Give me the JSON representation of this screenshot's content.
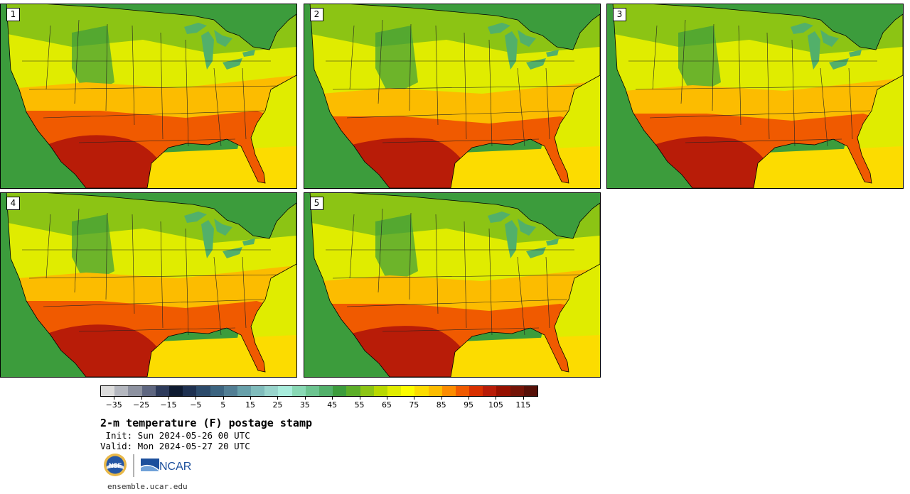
{
  "panels": [
    {
      "label": "1"
    },
    {
      "label": "2"
    },
    {
      "label": "3"
    },
    {
      "label": "4"
    },
    {
      "label": "5"
    }
  ],
  "colorbar": {
    "colors": [
      "#dcdcdc",
      "#b4b7bf",
      "#8d92a0",
      "#5e6680",
      "#2d3a5a",
      "#0e1a30",
      "#1e3050",
      "#2c4a6a",
      "#3c6480",
      "#527e94",
      "#68a0aa",
      "#80bcbc",
      "#98d4cc",
      "#a8ecdc",
      "#88d8b4",
      "#6cc490",
      "#52b06a",
      "#3c9c3c",
      "#5cae28",
      "#8cc414",
      "#b8d800",
      "#e0ec00",
      "#fcfc00",
      "#fcdc00",
      "#fcbc00",
      "#fc8c00",
      "#f05a00",
      "#d83000",
      "#b81c08",
      "#961000",
      "#741408",
      "#561008"
    ],
    "ticks": [
      "−35",
      "−25",
      "−15",
      "−5",
      "5",
      "15",
      "25",
      "35",
      "45",
      "55",
      "65",
      "75",
      "85",
      "95",
      "105",
      "115"
    ],
    "min": -40,
    "max": 120
  },
  "title": "2-m temperature (F) postage stamp",
  "init": " Init: Sun 2024-05-26 00 UTC",
  "valid": "Valid: Mon 2024-05-27 20 UTC",
  "logos": {
    "nsf": "NSF",
    "ncar": "NCAR"
  },
  "url": "ensemble.ucar.edu",
  "map_colors": {
    "ocean_west": "#3c9c3c",
    "pacific_mid": "#5cae28",
    "atlantic": "#e0ec00",
    "gulf": "#fcdc00",
    "north": "#8cc414",
    "mid": "#e0ec00",
    "south": "#fcbc00",
    "hot": "#f05a00",
    "veryhot": "#b81c08",
    "lakes": "#52b06a"
  }
}
